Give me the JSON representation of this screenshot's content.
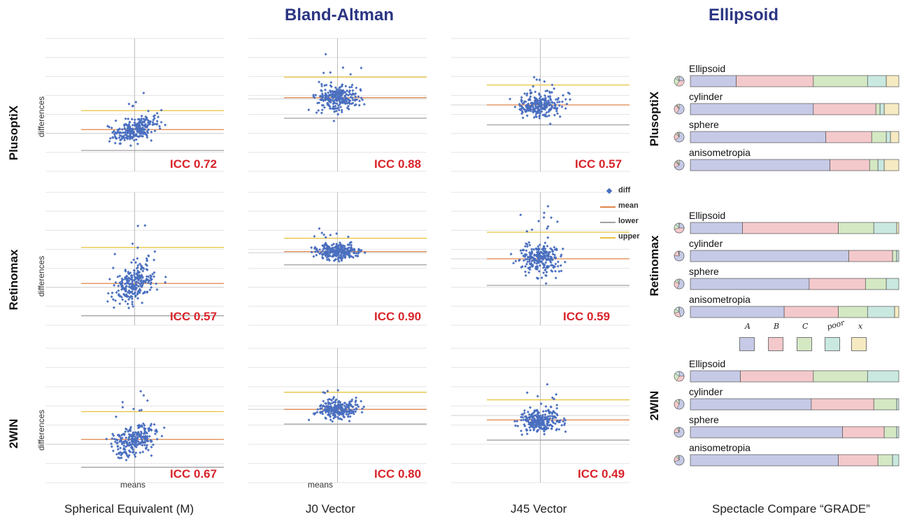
{
  "headers": {
    "bland_altman": "Bland-Altman",
    "ellipsoid": "Ellipsoid"
  },
  "rows": [
    "PlusoptiX",
    "Retinomax",
    "2WIN"
  ],
  "columns": [
    "Spherical Equivalent (M)",
    "J0 Vector",
    "J45 Vector",
    "Spectacle Compare “GRADE”"
  ],
  "axis_labels": {
    "y": "differences",
    "x": "means"
  },
  "legend": {
    "items": [
      "diff",
      "mean",
      "lower",
      "upper"
    ],
    "colors": {
      "diff": "#4a6fbf",
      "mean": "#e0854a",
      "lower": "#a0a0a0",
      "upper": "#e8c23a"
    }
  },
  "grade_legend": {
    "labels": [
      "A",
      "B",
      "C",
      "poor",
      "x"
    ],
    "colors": [
      "#c6cae6",
      "#f4c9cc",
      "#d4e8c4",
      "#c9e8e0",
      "#f6eac2"
    ]
  },
  "chart_data": [
    {
      "type": "scatter",
      "panel": "PlusoptiX / Spherical Equivalent",
      "icc": "ICC 0.72",
      "xlim": [
        -10,
        10
      ],
      "ylim": [
        -4,
        10
      ],
      "mean": 0.4,
      "upper": 2.4,
      "lower": -1.8,
      "x_ticks": [
        "-10",
        "-8",
        "-6",
        "-4",
        "-2",
        "0",
        "2",
        "4",
        "6",
        "8",
        "10"
      ],
      "y_ticks": [
        "10",
        "8",
        "6",
        "4",
        "2",
        "0",
        "-2",
        "-4"
      ]
    },
    {
      "type": "scatter",
      "panel": "PlusoptiX / J0 Vector",
      "icc": "ICC 0.88",
      "xlim": [
        -2.5,
        2.5
      ],
      "ylim": [
        -3,
        2.5
      ],
      "mean": 0.05,
      "upper": 0.9,
      "lower": -0.8
    },
    {
      "type": "scatter",
      "panel": "PlusoptiX / J45 Vector",
      "icc": "ICC 0.57",
      "xlim": [
        -1.5,
        1.5
      ],
      "ylim": [
        -1.5,
        1.5
      ],
      "mean": 0.0,
      "upper": 0.45,
      "lower": -0.45
    },
    {
      "type": "scatter",
      "panel": "Retinomax / Spherical Equivalent",
      "icc": "ICC 0.57",
      "xlim": [
        -10,
        10
      ],
      "ylim": [
        -4,
        10
      ],
      "mean": 0.4,
      "upper": 4.2,
      "lower": -3.0
    },
    {
      "type": "scatter",
      "panel": "Retinomax / J0 Vector",
      "icc": "ICC 0.90",
      "xlim": [
        -2.5,
        2.5
      ],
      "ylim": [
        -3,
        2.5
      ],
      "mean": 0.05,
      "upper": 0.6,
      "lower": -0.5
    },
    {
      "type": "scatter",
      "panel": "Retinomax / J45 Vector",
      "icc": "ICC 0.59",
      "xlim": [
        -1.5,
        1.5
      ],
      "ylim": [
        -1.5,
        1.5
      ],
      "mean": 0.0,
      "upper": 0.6,
      "lower": -0.6
    },
    {
      "type": "scatter",
      "panel": "2WIN / Spherical Equivalent",
      "icc": "ICC 0.67",
      "xlim": [
        -10,
        10
      ],
      "ylim": [
        -4,
        10
      ],
      "mean": 0.5,
      "upper": 3.4,
      "lower": -2.4
    },
    {
      "type": "scatter",
      "panel": "2WIN / J0 Vector",
      "icc": "ICC 0.80",
      "xlim": [
        -2.5,
        2.5
      ],
      "ylim": [
        -3,
        2.5
      ],
      "mean": 0.0,
      "upper": 0.7,
      "lower": -0.6
    },
    {
      "type": "scatter",
      "panel": "2WIN / J45 Vector",
      "icc": "ICC 0.49",
      "xlim": [
        -1.5,
        1.5
      ],
      "ylim": [
        -1.5,
        1.5
      ],
      "mean": -0.1,
      "upper": 0.35,
      "lower": -0.55
    },
    {
      "type": "bar",
      "stacked": true,
      "panel": "PlusoptiX / GRADE",
      "series_labels": [
        "A",
        "B",
        "C",
        "poor",
        "x"
      ],
      "categories": [
        "Ellipsoid",
        "cylinder",
        "sphere",
        "anisometropia"
      ],
      "values": [
        [
          0.22,
          0.37,
          0.26,
          0.09,
          0.06
        ],
        [
          0.59,
          0.3,
          0.02,
          0.02,
          0.07
        ],
        [
          0.65,
          0.22,
          0.07,
          0.02,
          0.04
        ],
        [
          0.67,
          0.19,
          0.04,
          0.03,
          0.07
        ]
      ]
    },
    {
      "type": "bar",
      "stacked": true,
      "panel": "Retinomax / GRADE",
      "series_labels": [
        "A",
        "B",
        "C",
        "poor",
        "x"
      ],
      "categories": [
        "Ellipsoid",
        "cylinder",
        "sphere",
        "anisometropia"
      ],
      "values": [
        [
          0.25,
          0.46,
          0.17,
          0.11,
          0.01
        ],
        [
          0.76,
          0.21,
          0.02,
          0.01,
          0.0
        ],
        [
          0.57,
          0.27,
          0.1,
          0.06,
          0.0
        ],
        [
          0.45,
          0.26,
          0.14,
          0.13,
          0.02
        ]
      ]
    },
    {
      "type": "bar",
      "stacked": true,
      "panel": "2WIN / GRADE",
      "series_labels": [
        "A",
        "B",
        "C",
        "poor",
        "x"
      ],
      "categories": [
        "Ellipsoid",
        "cylinder",
        "sphere",
        "anisometropia"
      ],
      "values": [
        [
          0.24,
          0.35,
          0.26,
          0.15,
          0.0
        ],
        [
          0.58,
          0.3,
          0.11,
          0.01,
          0.0
        ],
        [
          0.73,
          0.2,
          0.06,
          0.01,
          0.0
        ],
        [
          0.71,
          0.19,
          0.07,
          0.03,
          0.0
        ]
      ]
    }
  ]
}
